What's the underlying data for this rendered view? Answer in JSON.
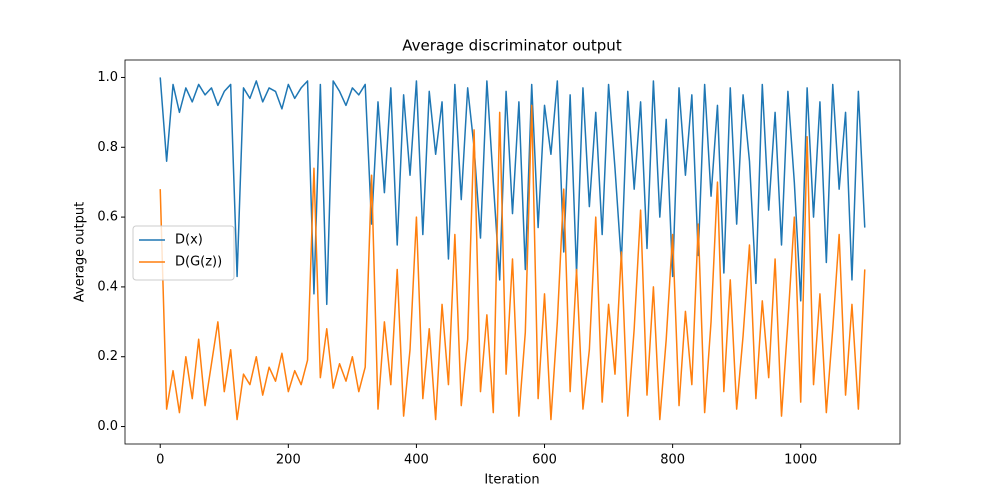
{
  "chart_data": {
    "type": "line",
    "title": "Average discriminator output",
    "xlabel": "Iteration",
    "ylabel": "Average output",
    "x": [
      0,
      10,
      20,
      30,
      40,
      50,
      60,
      70,
      80,
      90,
      100,
      110,
      120,
      130,
      140,
      150,
      160,
      170,
      180,
      190,
      200,
      210,
      220,
      230,
      240,
      250,
      260,
      270,
      280,
      290,
      300,
      310,
      320,
      330,
      340,
      350,
      360,
      370,
      380,
      390,
      400,
      410,
      420,
      430,
      440,
      450,
      460,
      470,
      480,
      490,
      500,
      510,
      520,
      530,
      540,
      550,
      560,
      570,
      580,
      590,
      600,
      610,
      620,
      630,
      640,
      650,
      660,
      670,
      680,
      690,
      700,
      710,
      720,
      730,
      740,
      750,
      760,
      770,
      780,
      790,
      800,
      810,
      820,
      830,
      840,
      850,
      860,
      870,
      880,
      890,
      900,
      910,
      920,
      930,
      940,
      950,
      960,
      970,
      980,
      990,
      1000,
      1010,
      1020,
      1030,
      1040,
      1050,
      1060,
      1070,
      1080,
      1090,
      1100
    ],
    "series": [
      {
        "name": "D(x)",
        "color": "#1f77b4",
        "values": [
          1.0,
          0.76,
          0.98,
          0.9,
          0.97,
          0.93,
          0.98,
          0.95,
          0.97,
          0.92,
          0.96,
          0.98,
          0.43,
          0.97,
          0.94,
          0.99,
          0.93,
          0.97,
          0.96,
          0.91,
          0.98,
          0.94,
          0.97,
          0.99,
          0.38,
          0.98,
          0.35,
          0.99,
          0.96,
          0.92,
          0.97,
          0.95,
          0.98,
          0.58,
          0.93,
          0.67,
          0.97,
          0.52,
          0.95,
          0.72,
          0.99,
          0.55,
          0.96,
          0.78,
          0.93,
          0.48,
          0.98,
          0.65,
          0.97,
          0.8,
          0.54,
          0.99,
          0.7,
          0.42,
          0.96,
          0.61,
          0.93,
          0.45,
          0.98,
          0.57,
          0.92,
          0.78,
          0.99,
          0.5,
          0.95,
          0.44,
          0.97,
          0.63,
          0.9,
          0.55,
          0.98,
          0.74,
          0.47,
          0.96,
          0.68,
          0.93,
          0.51,
          0.99,
          0.6,
          0.88,
          0.43,
          0.97,
          0.72,
          0.95,
          0.49,
          0.98,
          0.66,
          0.92,
          0.44,
          0.97,
          0.58,
          0.95,
          0.76,
          0.41,
          0.98,
          0.62,
          0.9,
          0.52,
          0.96,
          0.7,
          0.36,
          0.97,
          0.6,
          0.93,
          0.47,
          0.98,
          0.68,
          0.9,
          0.42,
          0.96,
          0.57
        ]
      },
      {
        "name": "D(G(z))",
        "color": "#ff7f0e",
        "values": [
          0.68,
          0.05,
          0.16,
          0.04,
          0.2,
          0.08,
          0.25,
          0.06,
          0.18,
          0.3,
          0.1,
          0.22,
          0.02,
          0.15,
          0.12,
          0.2,
          0.09,
          0.17,
          0.13,
          0.21,
          0.1,
          0.16,
          0.12,
          0.19,
          0.74,
          0.14,
          0.28,
          0.11,
          0.18,
          0.13,
          0.2,
          0.1,
          0.17,
          0.72,
          0.05,
          0.3,
          0.12,
          0.45,
          0.03,
          0.22,
          0.6,
          0.08,
          0.28,
          0.02,
          0.35,
          0.12,
          0.55,
          0.06,
          0.25,
          0.85,
          0.1,
          0.32,
          0.04,
          0.9,
          0.15,
          0.48,
          0.03,
          0.27,
          0.92,
          0.08,
          0.38,
          0.02,
          0.3,
          0.68,
          0.1,
          0.45,
          0.05,
          0.22,
          0.6,
          0.07,
          0.35,
          0.15,
          0.5,
          0.03,
          0.28,
          0.62,
          0.09,
          0.4,
          0.02,
          0.25,
          0.55,
          0.06,
          0.33,
          0.12,
          0.58,
          0.04,
          0.3,
          0.7,
          0.1,
          0.42,
          0.05,
          0.26,
          0.52,
          0.08,
          0.36,
          0.14,
          0.48,
          0.03,
          0.3,
          0.6,
          0.07,
          0.83,
          0.12,
          0.38,
          0.04,
          0.28,
          0.55,
          0.09,
          0.35,
          0.05,
          0.45
        ]
      }
    ],
    "xlim": [
      -55,
      1155
    ],
    "ylim": [
      -0.05,
      1.05
    ],
    "xticks": [
      0,
      200,
      400,
      600,
      800,
      1000
    ],
    "yticks": [
      {
        "value": 0,
        "label": "0.0"
      },
      0.2,
      0.4,
      0.6,
      0.8,
      {
        "value": 1,
        "label": "1.0"
      }
    ],
    "grid": false,
    "legend": "center left"
  }
}
